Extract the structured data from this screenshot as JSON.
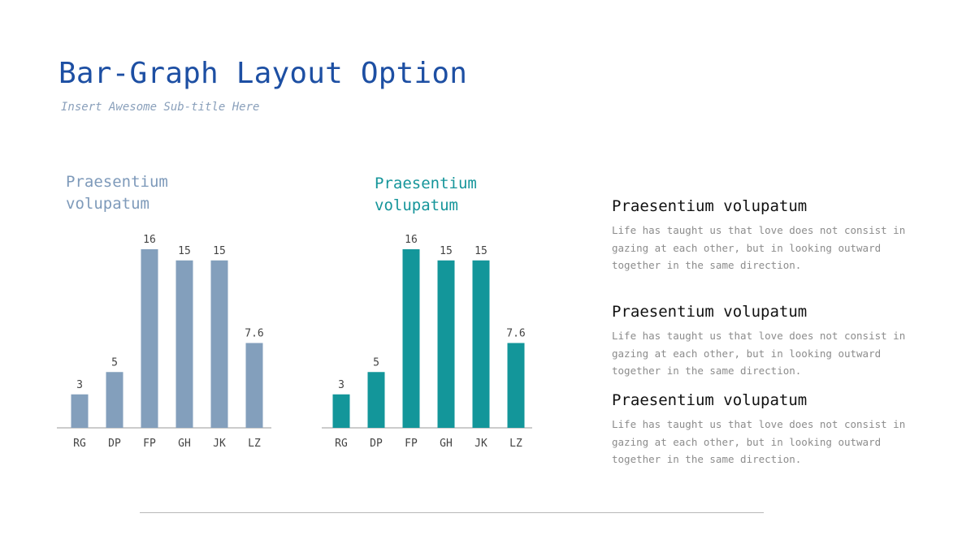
{
  "slide": {
    "title": "Bar-Graph Layout Option",
    "subtitle": "Insert Awesome Sub-title Here"
  },
  "colors": {
    "title": "#1d4fa3",
    "chart1_bars": "#839fbc",
    "chart2_bars": "#13969a"
  },
  "chart_data": [
    {
      "type": "bar",
      "title": "Praesentium volupatum",
      "categories": [
        "RG",
        "DP",
        "FP",
        "GH",
        "JK",
        "LZ"
      ],
      "values": [
        3,
        5,
        16,
        15,
        15,
        7.6
      ],
      "data_labels": [
        "3",
        "5",
        "16",
        "15",
        "15",
        "7.6"
      ],
      "ylim": [
        0,
        16
      ],
      "grid": false,
      "legend": "none",
      "color": "#839fbc"
    },
    {
      "type": "bar",
      "title": "Praesentium volupatum",
      "categories": [
        "RG",
        "DP",
        "FP",
        "GH",
        "JK",
        "LZ"
      ],
      "values": [
        3,
        5,
        16,
        15,
        15,
        7.6
      ],
      "data_labels": [
        "3",
        "5",
        "16",
        "15",
        "15",
        "7.6"
      ],
      "ylim": [
        0,
        16
      ],
      "grid": false,
      "legend": "none",
      "color": "#13969a"
    }
  ],
  "text_blocks": [
    {
      "heading": "Praesentium volupatum",
      "body": "Life has taught us that love does not consist in gazing at each other, but in looking outward together in the same direction."
    },
    {
      "heading": "Praesentium volupatum",
      "body": "Life has taught us that love does not consist in gazing at each other, but in looking outward together in the same direction."
    },
    {
      "heading": "Praesentium volupatum",
      "body": "Life has taught us that love does not consist in gazing at each other, but in looking outward together in the same direction."
    }
  ]
}
